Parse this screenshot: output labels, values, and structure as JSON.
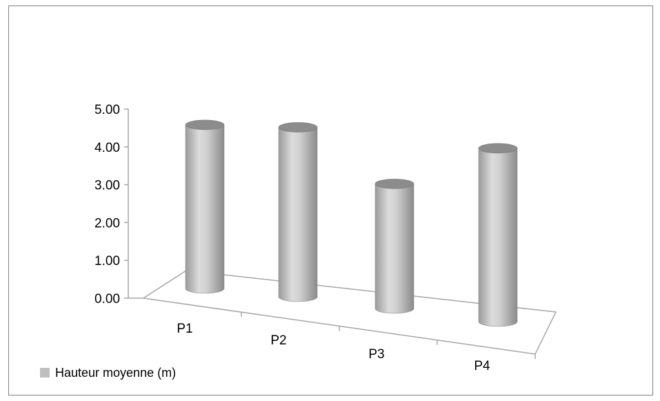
{
  "chart_data": {
    "type": "bar",
    "style": "3d-cylinder",
    "categories": [
      "P1",
      "P2",
      "P3",
      "P4"
    ],
    "series": [
      {
        "name": "Hauteur  moyenne (m)",
        "values": [
          4.2,
          4.35,
          3.2,
          4.45
        ]
      }
    ],
    "yticks": [
      "0.00",
      "1.00",
      "2.00",
      "3.00",
      "4.00",
      "5.00"
    ],
    "ylim": [
      0,
      5
    ],
    "grid": false,
    "legend_position": "bottom-left",
    "colors": {
      "bar": "#a6a6a6",
      "bar_top": "#8c8c8c",
      "axis": "#a6a6a6",
      "legend_swatch": "#bfbfbf"
    }
  }
}
